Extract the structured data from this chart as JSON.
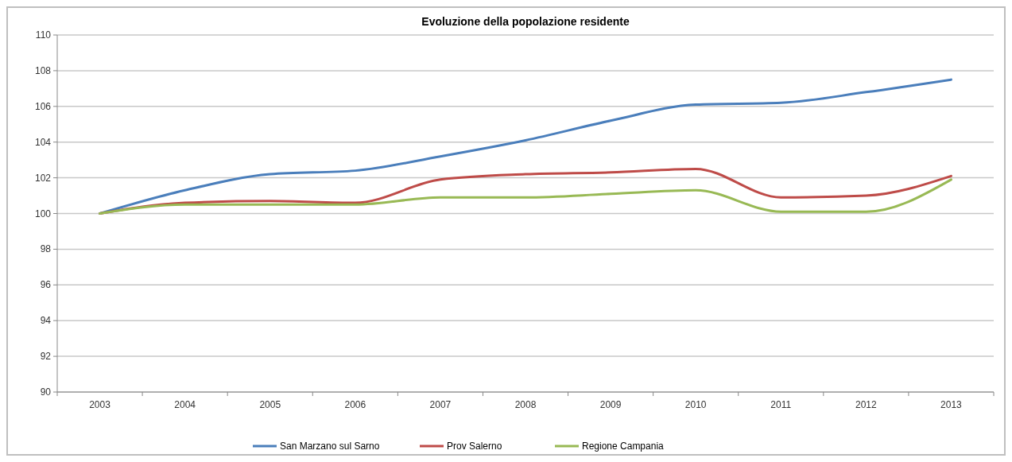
{
  "chart_data": {
    "type": "line",
    "title": "Evoluzione della popolazione residente",
    "categories": [
      "2003",
      "2004",
      "2005",
      "2006",
      "2007",
      "2008",
      "2009",
      "2010",
      "2011",
      "2012",
      "2013"
    ],
    "series": [
      {
        "name": "San Marzano sul Sarno",
        "color": "#4a7ebb",
        "values": [
          100,
          101.3,
          102.2,
          102.4,
          103.2,
          104.1,
          105.2,
          106.1,
          106.2,
          106.8,
          107.5
        ]
      },
      {
        "name": "Prov Salerno",
        "color": "#be4b48",
        "values": [
          100,
          100.6,
          100.7,
          100.6,
          101.9,
          102.2,
          102.3,
          102.5,
          100.9,
          101.0,
          102.1
        ]
      },
      {
        "name": "Regione Campania",
        "color": "#98b954",
        "values": [
          100,
          100.5,
          100.5,
          100.5,
          100.9,
          100.9,
          101.1,
          101.3,
          100.1,
          100.1,
          101.9
        ]
      }
    ],
    "ylim": [
      90,
      110
    ],
    "yticks": [
      90,
      92,
      94,
      96,
      98,
      100,
      102,
      104,
      106,
      108,
      110
    ],
    "grid": "y",
    "legend": "bottom",
    "marker": "none",
    "line_style": "solid"
  }
}
